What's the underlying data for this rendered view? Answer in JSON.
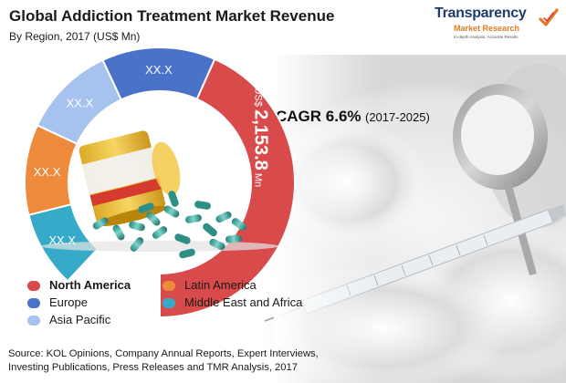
{
  "header": {
    "title": "Global Addiction Treatment Market Revenue",
    "subtitle": "By Region, 2017 (US$ Mn)"
  },
  "logo": {
    "line1": "Transparency",
    "line2": "Market Research",
    "tagline": "In-depth Analysis. Accurate Results"
  },
  "cagr": {
    "label": "CAGR 6.6%",
    "period": "(2017-2025)"
  },
  "chart_data": {
    "type": "pie",
    "title": "Global Addiction Treatment Market Revenue",
    "subtitle": "By Region, 2017 (US$ Mn)",
    "unit": "US$ Mn",
    "legend_position": "bottom-left",
    "segments": [
      {
        "name": "North America",
        "label_prefix": "US$",
        "label_value": "2,153.8",
        "label_suffix": "Mn",
        "color": "#d94a4a"
      },
      {
        "name": "Europe",
        "label_value": "XX.X",
        "color": "#4a72c8"
      },
      {
        "name": "Asia Pacific",
        "label_value": "XX.X",
        "color": "#a6c2ee"
      },
      {
        "name": "Latin America",
        "label_value": "XX.X",
        "color": "#ee8a3c"
      },
      {
        "name": "Middle East and Africa",
        "label_value": "XX.X",
        "color": "#38aac9"
      }
    ]
  },
  "legend": [
    {
      "name": "North America",
      "color": "#d94a4a",
      "bold": true
    },
    {
      "name": "Latin America",
      "color": "#ee8a3c",
      "bold": false
    },
    {
      "name": "Europe",
      "color": "#4a72c8",
      "bold": false
    },
    {
      "name": "Middle East and Africa",
      "color": "#38aac9",
      "bold": false
    },
    {
      "name": "Asia Pacific",
      "color": "#a6c2ee",
      "bold": false
    }
  ],
  "source": {
    "text": "Source: KOL Opinions, Company Annual Reports, Expert Interviews, Investing Publications, Press Releases and TMR Analysis, 2017"
  }
}
